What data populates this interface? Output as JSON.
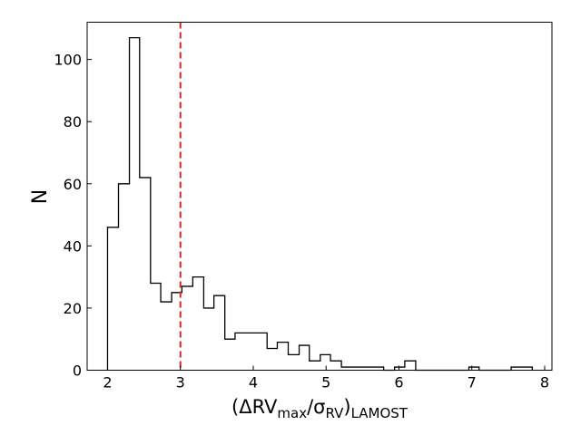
{
  "chart_data": {
    "type": "histogram",
    "xlabel": {
      "open": "(ΔRV",
      "sub1": "max",
      "mid": "/σ",
      "sub2": "RV",
      "close": ")",
      "sub3": "LAMOST"
    },
    "ylabel": "N",
    "xlim": [
      1.72,
      8.1
    ],
    "ylim": [
      0,
      112
    ],
    "x_ticks": [
      2,
      3,
      4,
      5,
      6,
      7,
      8
    ],
    "y_ticks": [
      0,
      20,
      40,
      60,
      80,
      100
    ],
    "reference_line": {
      "x": 3.0,
      "style": "dashed",
      "color": "#d62728"
    },
    "line_color": "#000000",
    "bins": [
      {
        "x0": 2.0,
        "x1": 2.15,
        "count": 46
      },
      {
        "x0": 2.15,
        "x1": 2.3,
        "count": 60
      },
      {
        "x0": 2.3,
        "x1": 2.44,
        "count": 107
      },
      {
        "x0": 2.44,
        "x1": 2.59,
        "count": 62
      },
      {
        "x0": 2.59,
        "x1": 2.73,
        "count": 28
      },
      {
        "x0": 2.73,
        "x1": 2.88,
        "count": 22
      },
      {
        "x0": 2.88,
        "x1": 3.02,
        "count": 25
      },
      {
        "x0": 3.02,
        "x1": 3.17,
        "count": 27
      },
      {
        "x0": 3.17,
        "x1": 3.32,
        "count": 30
      },
      {
        "x0": 3.32,
        "x1": 3.46,
        "count": 20
      },
      {
        "x0": 3.46,
        "x1": 3.61,
        "count": 24
      },
      {
        "x0": 3.61,
        "x1": 3.75,
        "count": 10
      },
      {
        "x0": 3.75,
        "x1": 3.9,
        "count": 12
      },
      {
        "x0": 3.9,
        "x1": 4.04,
        "count": 12
      },
      {
        "x0": 4.04,
        "x1": 4.19,
        "count": 12
      },
      {
        "x0": 4.19,
        "x1": 4.33,
        "count": 7
      },
      {
        "x0": 4.33,
        "x1": 4.48,
        "count": 9
      },
      {
        "x0": 4.48,
        "x1": 4.63,
        "count": 5
      },
      {
        "x0": 4.63,
        "x1": 4.77,
        "count": 8
      },
      {
        "x0": 4.77,
        "x1": 4.92,
        "count": 3
      },
      {
        "x0": 4.92,
        "x1": 5.06,
        "count": 5
      },
      {
        "x0": 5.06,
        "x1": 5.21,
        "count": 3
      },
      {
        "x0": 5.21,
        "x1": 5.35,
        "count": 1
      },
      {
        "x0": 5.35,
        "x1": 5.5,
        "count": 1
      },
      {
        "x0": 5.5,
        "x1": 5.65,
        "count": 1
      },
      {
        "x0": 5.65,
        "x1": 5.79,
        "count": 1
      },
      {
        "x0": 5.79,
        "x1": 5.94,
        "count": 0
      },
      {
        "x0": 5.94,
        "x1": 6.08,
        "count": 1
      },
      {
        "x0": 6.08,
        "x1": 6.23,
        "count": 3
      },
      {
        "x0": 6.23,
        "x1": 6.37,
        "count": 0
      },
      {
        "x0": 6.37,
        "x1": 6.52,
        "count": 0
      },
      {
        "x0": 6.52,
        "x1": 6.67,
        "count": 0
      },
      {
        "x0": 6.67,
        "x1": 6.81,
        "count": 0
      },
      {
        "x0": 6.81,
        "x1": 6.96,
        "count": 0
      },
      {
        "x0": 6.96,
        "x1": 7.1,
        "count": 1
      },
      {
        "x0": 7.1,
        "x1": 7.25,
        "count": 0
      },
      {
        "x0": 7.25,
        "x1": 7.39,
        "count": 0
      },
      {
        "x0": 7.39,
        "x1": 7.54,
        "count": 0
      },
      {
        "x0": 7.54,
        "x1": 7.68,
        "count": 1
      },
      {
        "x0": 7.68,
        "x1": 7.83,
        "count": 1
      }
    ]
  }
}
